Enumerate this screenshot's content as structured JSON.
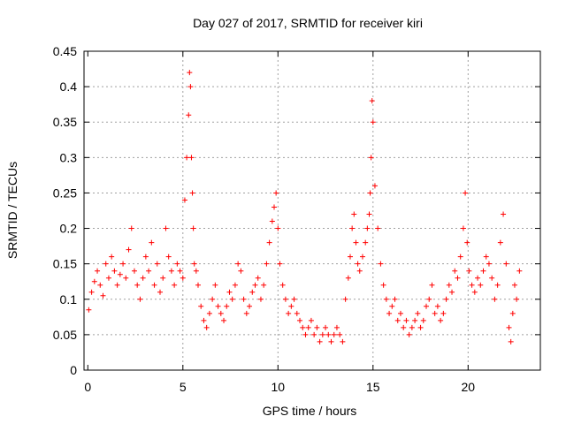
{
  "chart_data": {
    "type": "scatter",
    "title": "Day 027 of 2017, SRMTID for receiver kiri",
    "xlabel": "GPS time / hours",
    "ylabel": "SRMTID / TECUs",
    "xlim": [
      -0.2,
      23.8
    ],
    "ylim": [
      0,
      0.45
    ],
    "x_ticks": [
      0,
      5,
      10,
      15,
      20
    ],
    "x_tick_labels": [
      "0",
      "5",
      "10",
      "15",
      "20"
    ],
    "y_ticks": [
      0,
      0.05,
      0.1,
      0.15,
      0.2,
      0.25,
      0.3,
      0.35,
      0.4,
      0.45
    ],
    "y_tick_labels": [
      "0",
      "0.05",
      "0.1",
      "0.15",
      "0.2",
      "0.25",
      "0.3",
      "0.35",
      "0.4",
      "0.45"
    ],
    "grid": true,
    "marker": "plus",
    "color": "#ff0000",
    "series": [
      {
        "name": "SRMTID",
        "x": [
          0.05,
          0.2,
          0.35,
          0.5,
          0.65,
          0.8,
          0.95,
          1.1,
          1.25,
          1.4,
          1.55,
          1.7,
          1.85,
          2.0,
          2.15,
          2.3,
          2.45,
          2.6,
          2.75,
          2.9,
          3.05,
          3.2,
          3.35,
          3.5,
          3.65,
          3.8,
          3.95,
          4.1,
          4.25,
          4.4,
          4.55,
          4.7,
          4.85,
          5.0,
          5.1,
          5.2,
          5.3,
          5.35,
          5.4,
          5.45,
          5.5,
          5.55,
          5.6,
          5.7,
          5.8,
          5.95,
          6.1,
          6.25,
          6.4,
          6.55,
          6.7,
          6.85,
          7.0,
          7.15,
          7.3,
          7.45,
          7.6,
          7.75,
          7.9,
          8.05,
          8.2,
          8.35,
          8.5,
          8.65,
          8.8,
          8.95,
          9.1,
          9.25,
          9.4,
          9.55,
          9.7,
          9.8,
          9.9,
          10.0,
          10.1,
          10.25,
          10.4,
          10.55,
          10.7,
          10.85,
          11.0,
          11.15,
          11.3,
          11.45,
          11.6,
          11.75,
          11.9,
          12.05,
          12.2,
          12.35,
          12.5,
          12.65,
          12.8,
          12.95,
          13.1,
          13.25,
          13.4,
          13.55,
          13.7,
          13.8,
          13.9,
          14.0,
          14.1,
          14.2,
          14.3,
          14.45,
          14.6,
          14.7,
          14.8,
          14.85,
          14.9,
          14.95,
          15.0,
          15.1,
          15.25,
          15.4,
          15.55,
          15.7,
          15.85,
          16.0,
          16.15,
          16.3,
          16.45,
          16.6,
          16.75,
          16.9,
          17.05,
          17.2,
          17.35,
          17.5,
          17.65,
          17.8,
          17.95,
          18.1,
          18.25,
          18.4,
          18.55,
          18.7,
          18.85,
          19.0,
          19.15,
          19.3,
          19.45,
          19.6,
          19.75,
          19.85,
          19.95,
          20.05,
          20.2,
          20.35,
          20.5,
          20.65,
          20.8,
          20.95,
          21.1,
          21.25,
          21.4,
          21.55,
          21.7,
          21.85,
          22.0,
          22.15,
          22.25,
          22.35,
          22.45,
          22.55,
          22.7
        ],
        "y": [
          0.085,
          0.11,
          0.125,
          0.14,
          0.12,
          0.105,
          0.15,
          0.13,
          0.16,
          0.14,
          0.12,
          0.135,
          0.15,
          0.13,
          0.17,
          0.2,
          0.14,
          0.12,
          0.1,
          0.13,
          0.16,
          0.14,
          0.18,
          0.12,
          0.15,
          0.11,
          0.13,
          0.2,
          0.16,
          0.14,
          0.12,
          0.15,
          0.14,
          0.13,
          0.24,
          0.3,
          0.36,
          0.42,
          0.4,
          0.3,
          0.25,
          0.2,
          0.15,
          0.14,
          0.12,
          0.09,
          0.07,
          0.06,
          0.08,
          0.1,
          0.12,
          0.09,
          0.08,
          0.07,
          0.09,
          0.11,
          0.1,
          0.12,
          0.15,
          0.14,
          0.1,
          0.08,
          0.09,
          0.11,
          0.12,
          0.13,
          0.1,
          0.12,
          0.15,
          0.18,
          0.21,
          0.23,
          0.25,
          0.2,
          0.15,
          0.12,
          0.1,
          0.08,
          0.09,
          0.1,
          0.08,
          0.07,
          0.06,
          0.05,
          0.06,
          0.07,
          0.05,
          0.06,
          0.04,
          0.05,
          0.06,
          0.05,
          0.04,
          0.05,
          0.06,
          0.05,
          0.04,
          0.1,
          0.13,
          0.16,
          0.2,
          0.22,
          0.18,
          0.15,
          0.14,
          0.16,
          0.18,
          0.2,
          0.22,
          0.25,
          0.3,
          0.38,
          0.35,
          0.26,
          0.2,
          0.15,
          0.12,
          0.1,
          0.08,
          0.09,
          0.1,
          0.07,
          0.08,
          0.06,
          0.07,
          0.05,
          0.06,
          0.07,
          0.08,
          0.06,
          0.07,
          0.09,
          0.1,
          0.12,
          0.08,
          0.09,
          0.07,
          0.08,
          0.1,
          0.12,
          0.11,
          0.14,
          0.13,
          0.16,
          0.2,
          0.25,
          0.18,
          0.14,
          0.12,
          0.11,
          0.13,
          0.12,
          0.14,
          0.16,
          0.15,
          0.13,
          0.1,
          0.12,
          0.18,
          0.22,
          0.15,
          0.06,
          0.04,
          0.08,
          0.12,
          0.1,
          0.14
        ]
      }
    ]
  }
}
